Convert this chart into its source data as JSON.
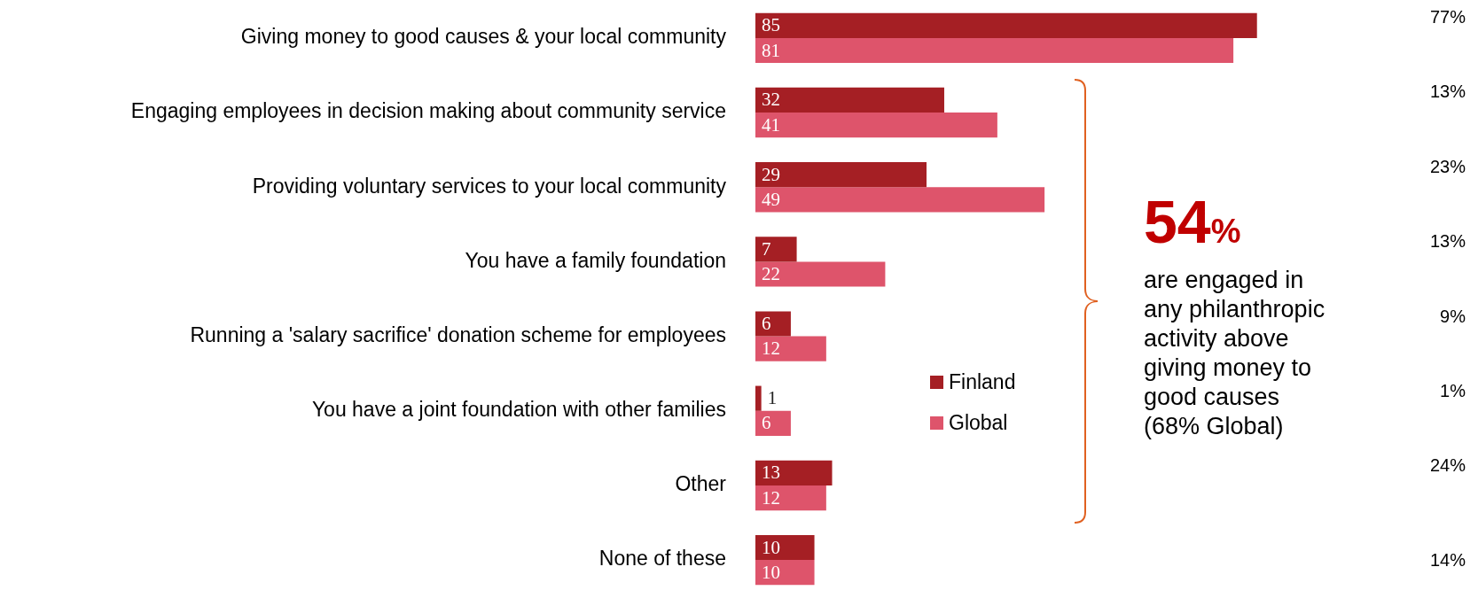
{
  "chart_data": {
    "type": "bar",
    "orientation": "horizontal",
    "categories": [
      "Giving money to good causes & your local community",
      "Engaging employees in decision making about community service",
      "Providing voluntary services to your local community",
      "You have a family foundation",
      "Running a 'salary sacrifice' donation scheme for employees",
      "You have a joint foundation with other families",
      "Other",
      "None of these"
    ],
    "series": [
      {
        "name": "Finland",
        "color": "#a51f24",
        "values": [
          85,
          32,
          29,
          7,
          6,
          1,
          13,
          10
        ]
      },
      {
        "name": "Global",
        "color": "#de546b",
        "values": [
          81,
          41,
          49,
          22,
          12,
          6,
          12,
          10
        ]
      }
    ],
    "data_labels": true,
    "legend": "center",
    "grid": false,
    "annotations": [
      "54%",
      "are engaged in any philanthropic activity above giving money to good causes (68% Global)",
      "77%",
      "13%",
      "23%",
      "13%",
      "9%",
      "1%",
      "24%",
      "14%"
    ]
  }
}
